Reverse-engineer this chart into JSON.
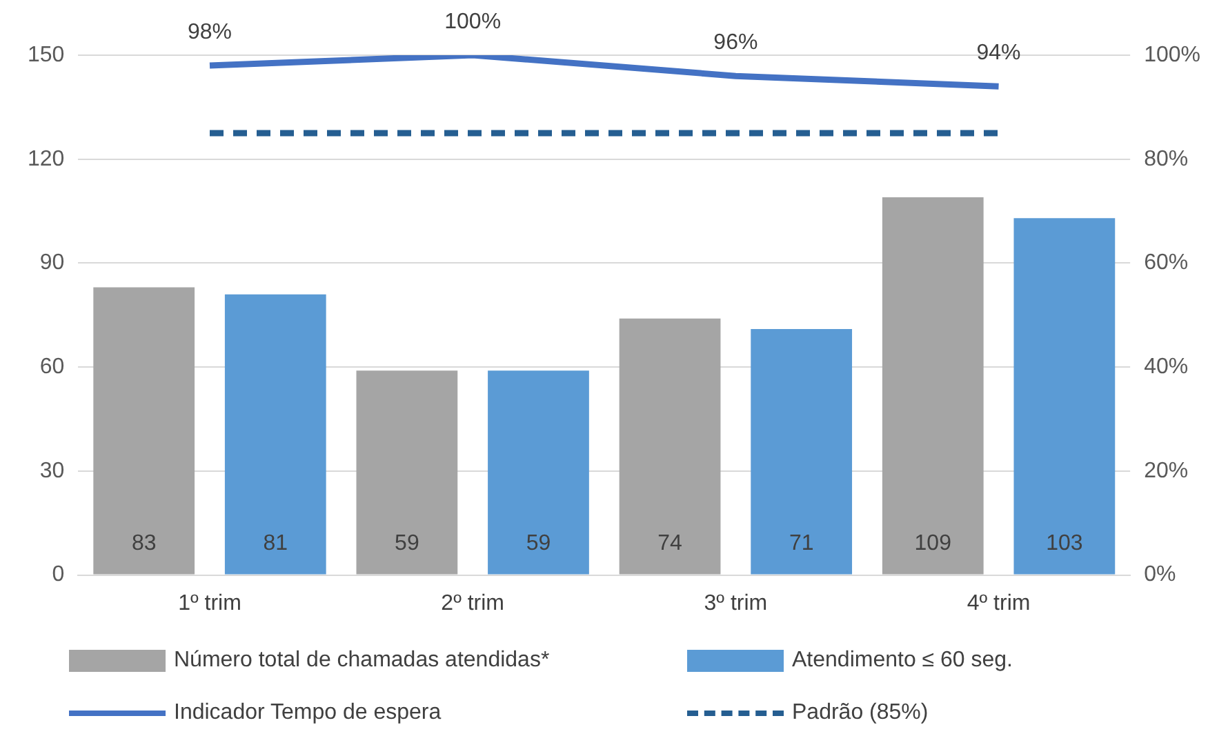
{
  "chart_data": {
    "type": "bar",
    "categories": [
      "1º trim",
      "2º trim",
      "3º trim",
      "4º trim"
    ],
    "series": [
      {
        "name": "Número total de chamadas atendidas*",
        "color": "#a5a5a5",
        "values": [
          83,
          59,
          74,
          109
        ],
        "value_labels": [
          "83",
          "59",
          "74",
          "109"
        ]
      },
      {
        "name": "Atendimento ≤ 60 seg.",
        "color": "#5b9bd5",
        "values": [
          81,
          59,
          71,
          103
        ],
        "value_labels": [
          "81",
          "59",
          "71",
          "103"
        ]
      },
      {
        "name": "Indicador Tempo de espera",
        "type": "line",
        "axis": "y2",
        "color": "#4472c4",
        "values": [
          98,
          100,
          96,
          94
        ],
        "value_labels": [
          "98%",
          "100%",
          "96%",
          "94%"
        ],
        "line_style": "solid"
      },
      {
        "name": "Padrão (85%)",
        "type": "line",
        "axis": "y2",
        "color": "#255e91",
        "values": [
          85,
          85,
          85,
          85
        ],
        "line_style": "dashed"
      }
    ],
    "ylim": [
      0,
      150
    ],
    "yticks": [
      0,
      30,
      60,
      90,
      120,
      150
    ],
    "y2lim": [
      0,
      100
    ],
    "y2ticks": [
      {
        "value": 0,
        "label": "0%"
      },
      {
        "value": 20,
        "label": "20%"
      },
      {
        "value": 40,
        "label": "40%"
      },
      {
        "value": 60,
        "label": "60%"
      },
      {
        "value": 80,
        "label": "80%"
      },
      {
        "value": 100,
        "label": "100%"
      }
    ],
    "grid": "y",
    "legend": "bottom",
    "marker": "none"
  }
}
